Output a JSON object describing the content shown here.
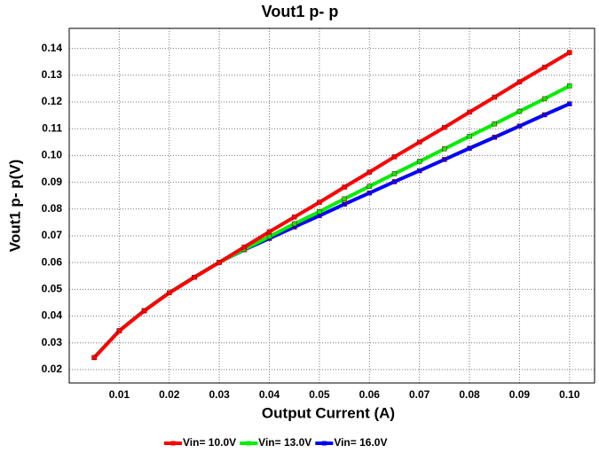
{
  "chart_data": {
    "type": "line",
    "title": "Vout1 p- p",
    "xlabel": "Output Current (A)",
    "ylabel": "Vout1 p- p(V)",
    "x": [
      0.005,
      0.01,
      0.015,
      0.02,
      0.025,
      0.03,
      0.035,
      0.04,
      0.045,
      0.05,
      0.055,
      0.06,
      0.065,
      0.07,
      0.075,
      0.08,
      0.085,
      0.09,
      0.095,
      0.1
    ],
    "series": [
      {
        "name": "Vin= 10.0V",
        "color": "#ff0000",
        "values": [
          0.0245,
          0.0345,
          0.042,
          0.0487,
          0.0545,
          0.0601,
          0.0658,
          0.0715,
          0.077,
          0.0825,
          0.0882,
          0.0938,
          0.0995,
          0.105,
          0.1105,
          0.1162,
          0.1218,
          0.1275,
          0.133,
          0.1385
        ]
      },
      {
        "name": "Vin= 13.0V",
        "color": "#00ee00",
        "values": [
          0.0245,
          0.0345,
          0.042,
          0.0487,
          0.0545,
          0.0601,
          0.065,
          0.0697,
          0.0745,
          0.079,
          0.0838,
          0.0885,
          0.0932,
          0.0978,
          0.1025,
          0.1072,
          0.1118,
          0.1165,
          0.1212,
          0.126
        ]
      },
      {
        "name": "Vin= 16.0V",
        "color": "#0000ff",
        "values": [
          0.0245,
          0.0345,
          0.042,
          0.0487,
          0.0545,
          0.0601,
          0.0648,
          0.069,
          0.0733,
          0.0775,
          0.0818,
          0.086,
          0.0902,
          0.0943,
          0.0985,
          0.1027,
          0.1068,
          0.111,
          0.1152,
          0.1193
        ]
      }
    ],
    "xlim": [
      0,
      0.105
    ],
    "xticks": [
      0.01,
      0.02,
      0.03,
      0.04,
      0.05,
      0.06,
      0.07,
      0.08,
      0.09,
      {
        "value": 0.1,
        "label": "0.10"
      }
    ],
    "ylim": [
      0.015,
      0.1475
    ],
    "yticks": [
      0.02,
      0.03,
      0.04,
      0.05,
      0.06,
      0.07,
      0.08,
      0.09,
      {
        "value": 0.1,
        "label": "0.10"
      },
      0.11,
      0.12,
      0.13,
      0.14
    ],
    "grid": true,
    "legend": "bottom"
  }
}
